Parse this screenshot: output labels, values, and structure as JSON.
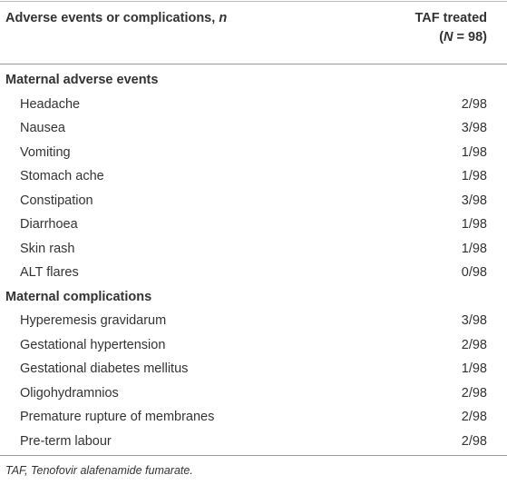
{
  "table": {
    "header": {
      "col1": {
        "text": "Adverse events or complications, ",
        "italic": "n"
      },
      "col2": {
        "line1": "TAF treated",
        "line2_open": "(",
        "line2_italic": "N",
        "line2_rest": " = 98)"
      }
    },
    "sections": [
      {
        "title": "Maternal adverse events",
        "rows": [
          {
            "label": "Headache",
            "value": "2/98"
          },
          {
            "label": "Nausea",
            "value": "3/98"
          },
          {
            "label": "Vomiting",
            "value": "1/98"
          },
          {
            "label": "Stomach ache",
            "value": "1/98"
          },
          {
            "label": "Constipation",
            "value": "3/98"
          },
          {
            "label": "Diarrhoea",
            "value": "1/98"
          },
          {
            "label": "Skin rash",
            "value": "1/98"
          },
          {
            "label": "ALT flares",
            "value": "0/98"
          }
        ]
      },
      {
        "title": "Maternal complications",
        "rows": [
          {
            "label": "Hyperemesis gravidarum",
            "value": "3/98"
          },
          {
            "label": "Gestational hypertension",
            "value": "2/98"
          },
          {
            "label": "Gestational diabetes mellitus",
            "value": "1/98"
          },
          {
            "label": "Oligohydramnios",
            "value": "2/98"
          },
          {
            "label": "Premature rupture of membranes",
            "value": "2/98"
          },
          {
            "label": "Pre-term labour",
            "value": "2/98"
          }
        ]
      }
    ],
    "footnote": "TAF, Tenofovir alafenamide fumarate."
  }
}
